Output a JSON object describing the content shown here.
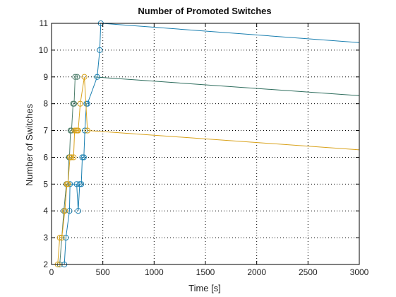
{
  "chart_data": {
    "type": "line",
    "title": "Number of Promoted Switches",
    "xlabel": "Time [s]",
    "ylabel": "Number of Switches",
    "xlim": [
      0,
      3000
    ],
    "ylim": [
      2,
      11
    ],
    "xticks": [
      0,
      500,
      1000,
      1500,
      2000,
      2500,
      3000
    ],
    "yticks": [
      2,
      3,
      4,
      5,
      6,
      7,
      8,
      9,
      10,
      11
    ],
    "grid": true,
    "legend": "none",
    "series": [
      {
        "color": "#1a7fb0",
        "marker": "circle",
        "x": [
          125,
          140,
          175,
          180,
          245,
          260,
          275,
          290,
          300,
          315,
          325,
          340,
          350,
          445,
          470,
          480
        ],
        "y": [
          2,
          3,
          4,
          5,
          5,
          4,
          5,
          5,
          6,
          6,
          7,
          8,
          8,
          9,
          10,
          11
        ]
      },
      {
        "color": "#4d7e6b",
        "marker": "circle",
        "x": [
          80,
          100,
          120,
          145,
          160,
          170,
          175,
          185,
          195,
          210,
          220,
          230,
          250
        ],
        "y": [
          2,
          3,
          4,
          5,
          5,
          6,
          6,
          7,
          7,
          8,
          8,
          9,
          9
        ]
      },
      {
        "color": "#d9a21b",
        "marker": "circle",
        "x": [
          60,
          80,
          100,
          130,
          150,
          160,
          180,
          195,
          215,
          225,
          240,
          250,
          260,
          280,
          320,
          350
        ],
        "y": [
          2,
          3,
          3,
          4,
          5,
          5,
          6,
          6,
          6,
          7,
          7,
          7,
          7,
          8,
          9,
          7
        ]
      }
    ],
    "tails": [
      {
        "color": "#1a7fb0",
        "x": [
          490,
          3000
        ],
        "y": [
          11,
          10.28
        ]
      },
      {
        "color": "#2f6e5e",
        "x": [
          410,
          3000
        ],
        "y": [
          9,
          8.3
        ]
      },
      {
        "color": "#d9a21b",
        "x": [
          350,
          3000
        ],
        "y": [
          7,
          6.28
        ]
      }
    ]
  }
}
